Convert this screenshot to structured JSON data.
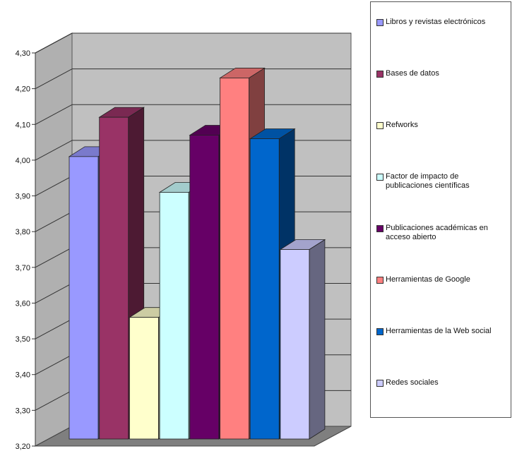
{
  "chart_data": {
    "type": "bar",
    "view": "3d-columns",
    "y_ticks": [
      "3,20",
      "3,30",
      "3,40",
      "3,50",
      "3,60",
      "3,70",
      "3,80",
      "3,90",
      "4,00",
      "4,10",
      "4,20",
      "4,30"
    ],
    "ylim": [
      3.2,
      4.3
    ],
    "grid": true,
    "legend_position": "right",
    "series": [
      {
        "name": "Libros y revistas electrónicos",
        "value": 4.01,
        "color": "#9999ff"
      },
      {
        "name": "Bases de datos",
        "value": 4.12,
        "color": "#993366"
      },
      {
        "name": "Refworks",
        "value": 3.56,
        "color": "#ffffcc"
      },
      {
        "name": "Factor de impacto de publicaciones científicas",
        "value": 3.91,
        "color": "#ccffff"
      },
      {
        "name": "Publicaciones académicas en acceso abierto",
        "value": 4.07,
        "color": "#660066"
      },
      {
        "name": "Herramientas de Google",
        "value": 4.23,
        "color": "#ff8080"
      },
      {
        "name": "Herramientas de la Web social",
        "value": 4.06,
        "color": "#0066cc"
      },
      {
        "name": "Redes sociales",
        "value": 3.75,
        "color": "#ccccff"
      }
    ]
  }
}
